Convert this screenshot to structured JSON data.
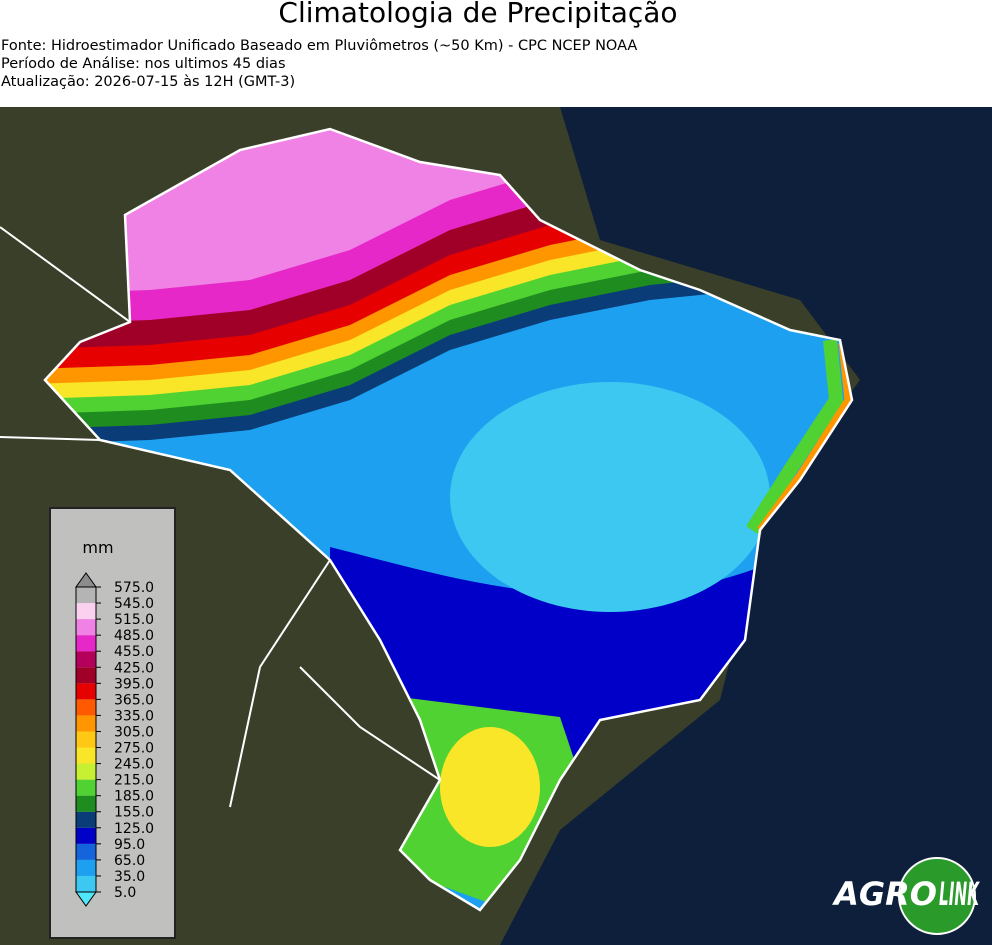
{
  "header": {
    "title": "Climatologia de Precipitação",
    "subtitles": [
      "Fonte: Hidroestimador Unificado Baseado em Pluviômetros (~50 Km) - CPC NCEP NOAA",
      "Período de Análise: nos ultimos 45 dias",
      "Atualização: 2026-07-15 às 12H (GMT-3)"
    ]
  },
  "colorbar": {
    "label": "mm",
    "ticks": [
      {
        "value": 5,
        "label": "5.0"
      },
      {
        "value": 35,
        "label": "35.0"
      },
      {
        "value": 65,
        "label": "65.0"
      },
      {
        "value": 95,
        "label": "95.0"
      },
      {
        "value": 125,
        "label": "125.0"
      },
      {
        "value": 155,
        "label": "155.0"
      },
      {
        "value": 185,
        "label": "185.0"
      },
      {
        "value": 215,
        "label": "215.0"
      },
      {
        "value": 245,
        "label": "245.0"
      },
      {
        "value": 275,
        "label": "275.0"
      },
      {
        "value": 305,
        "label": "305.0"
      },
      {
        "value": 335,
        "label": "335.0"
      },
      {
        "value": 365,
        "label": "365.0"
      },
      {
        "value": 395,
        "label": "395.0"
      },
      {
        "value": 425,
        "label": "425.0"
      },
      {
        "value": 455,
        "label": "455.0"
      },
      {
        "value": 485,
        "label": "485.0"
      },
      {
        "value": 515,
        "label": "515.0"
      },
      {
        "value": 545,
        "label": "545.0"
      },
      {
        "value": 575,
        "label": "575.0"
      }
    ],
    "colors": [
      "#3cc8f0",
      "#1ea0f0",
      "#1464dc",
      "#0000c8",
      "#0a3c78",
      "#1e8c1e",
      "#50d232",
      "#c8f032",
      "#fae628",
      "#ffc814",
      "#ff9600",
      "#ff5a00",
      "#e60000",
      "#a00028",
      "#b4005a",
      "#e628c8",
      "#f082e6",
      "#fad2f0",
      "#b4b4b4"
    ],
    "under_color": "#50e6fa",
    "over_color": "#8c8c8c"
  },
  "logo": [
    "AGRO",
    "LINK"
  ]
}
